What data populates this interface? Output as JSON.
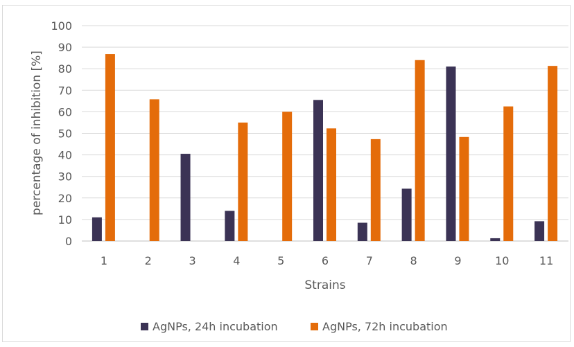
{
  "chart_data": {
    "type": "bar",
    "title": "",
    "xlabel": "Strains",
    "ylabel": "percentage of inhibition [%]",
    "ylim": [
      0,
      100
    ],
    "yticks": [
      0,
      10,
      20,
      30,
      40,
      50,
      60,
      70,
      80,
      90,
      100
    ],
    "categories": [
      "1",
      "2",
      "3",
      "4",
      "5",
      "6",
      "7",
      "8",
      "9",
      "10",
      "11"
    ],
    "series": [
      {
        "name": "AgNPs, 24h incubation",
        "color": "#3b3355",
        "values": [
          11,
          0,
          40.5,
          14,
          0,
          65.5,
          8.5,
          24.3,
          81,
          1.3,
          9.2
        ]
      },
      {
        "name": "AgNPs, 72h incubation",
        "color": "#e46c0a",
        "values": [
          86.8,
          65.8,
          0,
          55,
          60,
          52.3,
          47.3,
          84,
          48.3,
          62.5,
          81.3
        ]
      }
    ],
    "grid": true,
    "legend_position": "bottom"
  }
}
